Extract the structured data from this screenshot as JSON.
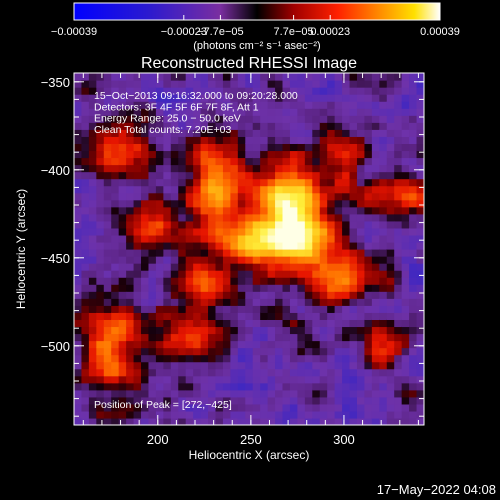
{
  "chart_data": {
    "type": "heatmap",
    "title": "Reconstructed RHESSI Image",
    "xlabel": "Heliocentric X (arcsec)",
    "ylabel": "Heliocentric Y (arcsec)",
    "xlim": [
      155,
      343
    ],
    "ylim": [
      -545,
      -345
    ],
    "x_ticks": [
      200,
      250,
      300
    ],
    "y_ticks": [
      -350,
      -400,
      -450,
      -500
    ],
    "y_tick_labels": [
      "−350",
      "−400",
      "−450",
      "−500"
    ],
    "colorbar": {
      "range": [
        -0.00039,
        0.00039
      ],
      "tick_labels": [
        "−0.00039",
        "−0.00023",
        "−7.7e−05",
        "7.7e−05",
        "0.00023",
        "0.00039"
      ],
      "units_label": "(photons cm⁻² s⁻¹ asec⁻²)"
    },
    "annotations": [
      "15−Oct−2013 09:16:32.000 to 09:20:28.000",
      "Detectors: 3F 4F 5F 6F 7F 8F, Att 1",
      "Energy Range: 25.0 − 50.0 keV",
      "Clean    Total counts: 7.20E+03"
    ],
    "peak_label": "Position of Peak = [272,−425]",
    "peak": {
      "x": 272,
      "y": -425
    },
    "sources": [
      {
        "x": 272,
        "y": -425,
        "sx": 14,
        "sy": 22,
        "amp": 1.0
      },
      {
        "x": 232,
        "y": -410,
        "sx": 10,
        "sy": 18,
        "amp": 0.8
      },
      {
        "x": 255,
        "y": -440,
        "sx": 25,
        "sy": 8,
        "amp": 0.55
      },
      {
        "x": 300,
        "y": -460,
        "sx": 12,
        "sy": 10,
        "amp": 0.6
      },
      {
        "x": 330,
        "y": -415,
        "sx": 14,
        "sy": 8,
        "amp": 0.55
      },
      {
        "x": 180,
        "y": -390,
        "sx": 12,
        "sy": 14,
        "amp": 0.5
      },
      {
        "x": 175,
        "y": -500,
        "sx": 12,
        "sy": 20,
        "amp": 0.55
      },
      {
        "x": 215,
        "y": -495,
        "sx": 14,
        "sy": 10,
        "amp": 0.45
      },
      {
        "x": 225,
        "y": -465,
        "sx": 10,
        "sy": 10,
        "amp": 0.5
      },
      {
        "x": 195,
        "y": -430,
        "sx": 10,
        "sy": 10,
        "amp": 0.45
      },
      {
        "x": 320,
        "y": -500,
        "sx": 8,
        "sy": 8,
        "amp": 0.4
      },
      {
        "x": 300,
        "y": -390,
        "sx": 8,
        "sy": 10,
        "amp": 0.45
      }
    ]
  },
  "footer": {
    "timestamp": "17−May−2022 04:08"
  }
}
